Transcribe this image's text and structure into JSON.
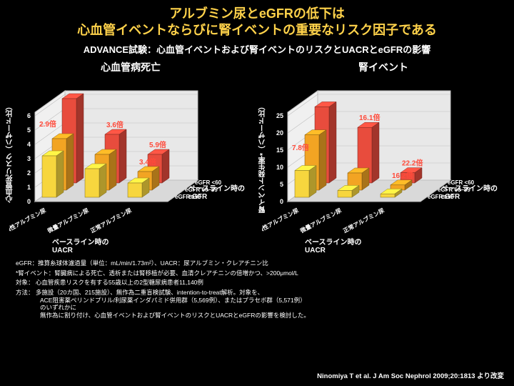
{
  "title_line1": "アルブミン尿とeGFRの低下は",
  "title_line2": "心血管イベントならびに腎イベントの重要なリスク因子である",
  "subtitle": "ADVANCE試験：心血管イベントおよび腎イベントのリスクとUACRとeGFRの影響",
  "citation": "Ninomiya T et al. J Am Soc Nephrol 2009;20:1813 より改変",
  "uacr_categories": [
    "顕性アルブミン尿",
    "微量アルブミン尿",
    "正常アルブミン尿"
  ],
  "egfr_categories": [
    "eGFR <60",
    "eGFR 60–89",
    "eGFR ≥90"
  ],
  "x_axis_label_l1": "ベースライン時の",
  "x_axis_label_l2": "UACR",
  "z_axis_label_l1": "ベースライン時の",
  "z_axis_label_l2": "eGFR",
  "series_colors": [
    "#f7d63e",
    "#f2a423",
    "#e84c3d"
  ],
  "floor_color": "#d9d9d9",
  "grid_color": "#bfbfbf",
  "label_color": "#ff4a3a",
  "left_chart": {
    "title": "心血管病死亡",
    "ylabel": "心血管死リスク（ハザード比）",
    "ylim": [
      0,
      6
    ],
    "ytick_step": 1,
    "labels": [
      "2.9倍",
      "3.6倍",
      "5.9倍",
      "3.4倍"
    ],
    "values": [
      [
        2.9,
        3.6,
        5.9
      ],
      [
        2.0,
        2.5,
        3.4
      ],
      [
        1.0,
        1.3,
        2.0
      ]
    ]
  },
  "right_chart": {
    "title": "腎イベント",
    "ylabel": "腎イベント発生率*（ハザード比）",
    "ylim": [
      0,
      25
    ],
    "ytick_step": 5,
    "labels": [
      "7.8倍",
      "16.1倍",
      "22.2倍",
      "16.2倍"
    ],
    "values": [
      [
        7.8,
        16.1,
        22.2
      ],
      [
        2.0,
        5.0,
        16.2
      ],
      [
        1.0,
        1.5,
        3.0
      ]
    ]
  },
  "footnotes": [
    "eGFR：推算糸球体濾過量（単位：mL/min/1.73m²）、UACR：尿アルブミン・クレアチニン比",
    "*腎イベント：腎臓病による死亡、透析または腎移植が必要、血清クレアチニンの倍増かつ、>200μmol/L",
    "対象： 心血管疾患リスクを有する55歳以上の2型糖尿病患者11,140例",
    "方法： 多施設（20カ国、215施設）、無作為二重盲検試験、intention-to-treat解析。対象を、\n　　　　ACE阻害薬ペリンドプリル/利尿薬インダパミド併用群（5,569例）、またはプラセボ群（5,571例）\n　　　　のいずれかに\n　　　　無作為に割り付け、心血管イベントおよび腎イベントのリスクとUACRとeGFRの影響を検討した。"
  ]
}
